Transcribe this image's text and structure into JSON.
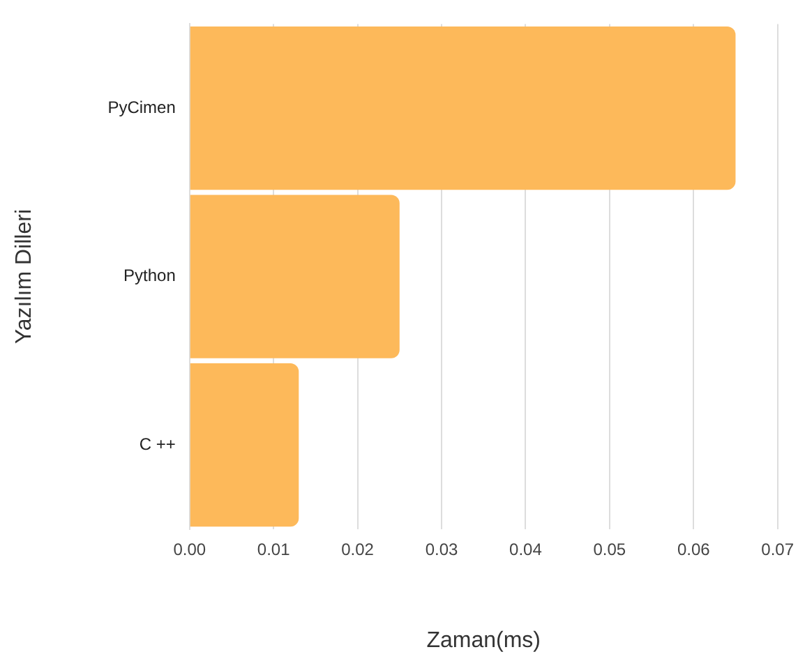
{
  "chart_data": {
    "type": "bar",
    "orientation": "horizontal",
    "xlabel": "Zaman(ms)",
    "ylabel": "Yazılım Dilleri",
    "categories": [
      "PyCimen",
      "Python",
      "C ++"
    ],
    "values": [
      0.065,
      0.025,
      0.013
    ],
    "color": "#fdb95a",
    "xlim": [
      0,
      0.07
    ],
    "xticks": [
      {
        "value": 0,
        "label": "0.00"
      },
      {
        "value": 0.01,
        "label": "0.01"
      },
      {
        "value": 0.02,
        "label": "0.02"
      },
      {
        "value": 0.03,
        "label": "0.03"
      },
      {
        "value": 0.04,
        "label": "0.04"
      },
      {
        "value": 0.05,
        "label": "0.05"
      },
      {
        "value": 0.06,
        "label": "0.06"
      },
      {
        "value": 0.07,
        "label": "0.07"
      }
    ],
    "grid": "x",
    "legend": false
  }
}
